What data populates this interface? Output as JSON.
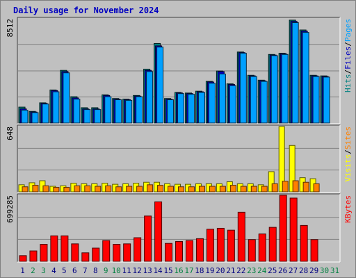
{
  "colors": {
    "background": "#c0c0c0",
    "panel": "#c0c0c0",
    "grid": "#808080",
    "title": "#0000c0",
    "hits": "#008080",
    "files": "#0000c0",
    "pages": "#00a0ff",
    "visits": "#ffff00",
    "sites": "#ff8000",
    "kbytes": "#ff0000",
    "weekday_label": "#000080",
    "weekend_label": "#008040"
  },
  "chart_data": {
    "type": "bar",
    "title": "Daily usage for November 2024",
    "categories": [
      "1",
      "2",
      "3",
      "4",
      "5",
      "6",
      "7",
      "8",
      "9",
      "10",
      "11",
      "12",
      "13",
      "14",
      "15",
      "16",
      "17",
      "18",
      "19",
      "20",
      "21",
      "22",
      "23",
      "24",
      "25",
      "26",
      "27",
      "28",
      "29",
      "30",
      "31"
    ],
    "weekend_days": [
      "2",
      "3",
      "9",
      "10",
      "16",
      "17",
      "23",
      "24",
      "30",
      "31"
    ],
    "top_panel": {
      "max_label": "8512",
      "legend": [
        "Hits",
        "/",
        "Files",
        "/",
        "Pages"
      ],
      "ylim": [
        0,
        8512
      ],
      "series": [
        {
          "name": "Hits",
          "values": [
            1300,
            950,
            1650,
            2700,
            4300,
            2150,
            1250,
            1250,
            2300,
            2000,
            1950,
            2250,
            4400,
            6500,
            2000,
            2500,
            2450,
            2600,
            3400,
            4250,
            3200,
            5800,
            3900,
            3500,
            5600,
            5700,
            8400,
            7600,
            3900,
            3850,
            null
          ]
        },
        {
          "name": "Files",
          "values": [
            1150,
            900,
            1600,
            2650,
            4200,
            2050,
            1150,
            1150,
            2250,
            1950,
            1900,
            2200,
            4300,
            6300,
            1950,
            2450,
            2400,
            2550,
            3350,
            4200,
            3150,
            5750,
            3850,
            3450,
            5550,
            5650,
            8300,
            7500,
            3850,
            3800,
            null
          ]
        },
        {
          "name": "Pages",
          "values": [
            1050,
            850,
            1550,
            2550,
            4100,
            1950,
            1100,
            1100,
            2150,
            1900,
            1850,
            2150,
            4200,
            6200,
            1900,
            2400,
            2350,
            2500,
            3250,
            4000,
            3050,
            5700,
            3800,
            3400,
            5500,
            5600,
            8200,
            7400,
            3800,
            3750,
            null
          ]
        }
      ]
    },
    "middle_panel": {
      "max_label": "648",
      "legend": [
        "Visits",
        "/",
        "Sites"
      ],
      "ylim": [
        0,
        648
      ],
      "series": [
        {
          "name": "Visits",
          "values": [
            70,
            90,
            110,
            55,
            60,
            85,
            80,
            80,
            85,
            75,
            80,
            85,
            95,
            95,
            80,
            75,
            75,
            80,
            80,
            80,
            100,
            80,
            80,
            70,
            200,
            648,
            460,
            140,
            130,
            null,
            null
          ]
        },
        {
          "name": "Sites",
          "values": [
            50,
            65,
            60,
            45,
            45,
            60,
            60,
            55,
            60,
            50,
            55,
            55,
            70,
            65,
            55,
            50,
            50,
            55,
            55,
            55,
            65,
            55,
            55,
            55,
            80,
            105,
            110,
            95,
            80,
            null,
            null
          ]
        }
      ]
    },
    "bottom_panel": {
      "max_label": "699285",
      "legend": [
        "KBytes"
      ],
      "ylim": [
        0,
        699285
      ],
      "series": [
        {
          "name": "KBytes",
          "values": [
            60000,
            110000,
            180000,
            270000,
            270000,
            185000,
            90000,
            140000,
            220000,
            180000,
            185000,
            250000,
            480000,
            630000,
            190000,
            210000,
            220000,
            240000,
            340000,
            350000,
            330000,
            520000,
            230000,
            290000,
            360000,
            700000,
            670000,
            380000,
            230000,
            null,
            null
          ]
        }
      ]
    }
  }
}
